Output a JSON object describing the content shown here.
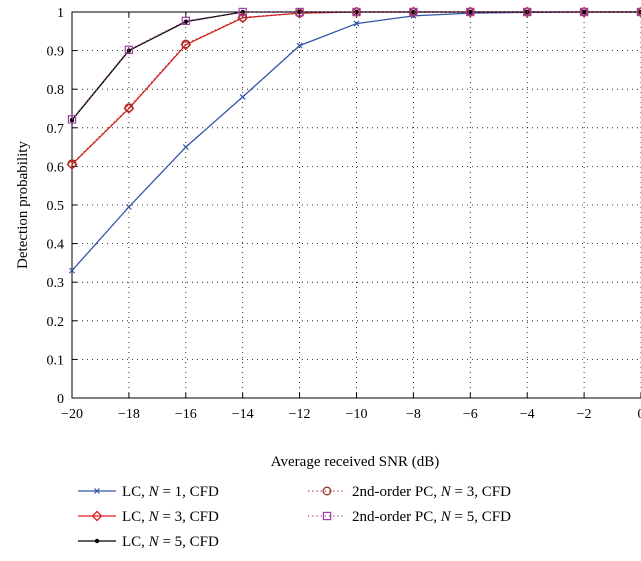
{
  "chart_data": {
    "type": "line",
    "title": "",
    "xlabel": "Average received SNR (dB)",
    "ylabel": "Detection probability",
    "xlim": [
      -20,
      0
    ],
    "ylim": [
      0,
      1
    ],
    "grid": true,
    "legend_position": "bottom",
    "x": [
      -20,
      -18,
      -16,
      -14,
      -12,
      -10,
      -8,
      -6,
      -4,
      -2,
      0
    ],
    "x_tick_labels": [
      "−20",
      "−18",
      "−16",
      "−14",
      "−12",
      "−10",
      "−8",
      "−6",
      "−4",
      "−2",
      "0"
    ],
    "y_ticks": [
      0,
      0.1,
      0.2,
      0.3,
      0.4,
      0.5,
      0.6,
      0.7,
      0.8,
      0.9,
      1
    ],
    "y_tick_labels": [
      "0",
      "0.1",
      "0.2",
      "0.3",
      "0.4",
      "0.5",
      "0.6",
      "0.7",
      "0.8",
      "0.9",
      "1"
    ],
    "series": [
      {
        "name": "LC, N = 1, CFD",
        "label_parts": [
          "LC, ",
          "N",
          " = 1, CFD"
        ],
        "color": "#3355a8",
        "line_style": "solid",
        "marker": "x",
        "values": [
          0.33,
          0.495,
          0.65,
          0.78,
          0.913,
          0.97,
          0.99,
          0.997,
          0.999,
          1.0,
          1.0
        ]
      },
      {
        "name": "LC, N = 3, CFD",
        "label_parts": [
          "LC, ",
          "N",
          " = 3, CFD"
        ],
        "color": "#e02020",
        "line_style": "solid",
        "marker": "diamond",
        "values": [
          0.605,
          0.75,
          0.915,
          0.985,
          0.997,
          1.0,
          1.0,
          1.0,
          1.0,
          1.0,
          1.0
        ]
      },
      {
        "name": "LC, N = 5, CFD",
        "label_parts": [
          "LC, ",
          "N",
          " = 5, CFD"
        ],
        "color": "#000000",
        "line_style": "solid",
        "marker": "dot",
        "values": [
          0.72,
          0.9,
          0.975,
          1.0,
          1.0,
          1.0,
          1.0,
          1.0,
          1.0,
          1.0,
          1.0
        ]
      },
      {
        "name": "2nd-order PC, N = 3, CFD",
        "label_parts": [
          "2nd-order PC, ",
          "N",
          " = 3, CFD"
        ],
        "color": "#a0302a",
        "line_style": "dotted",
        "marker": "circle",
        "values": [
          0.607,
          0.752,
          0.917,
          0.986,
          0.997,
          1.0,
          1.0,
          1.0,
          1.0,
          1.0,
          1.0
        ]
      },
      {
        "name": "2nd-order PC, N = 5, CFD",
        "label_parts": [
          "2nd-order PC, ",
          "N",
          " = 5, CFD"
        ],
        "color": "#a040a0",
        "line_style": "dotted",
        "marker": "square",
        "values": [
          0.722,
          0.902,
          0.977,
          1.0,
          1.0,
          1.0,
          1.0,
          1.0,
          1.0,
          1.0,
          1.0
        ]
      }
    ]
  }
}
